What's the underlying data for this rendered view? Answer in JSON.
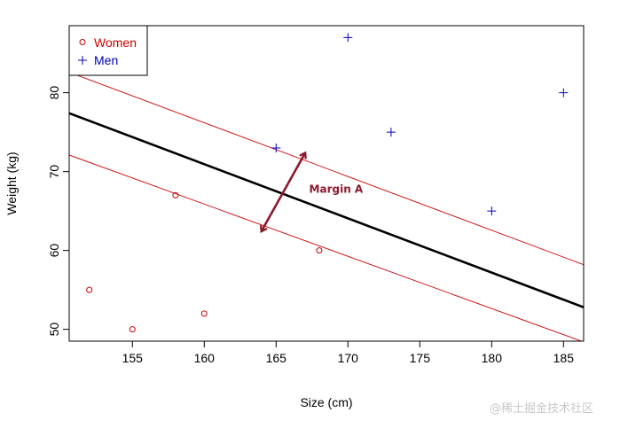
{
  "chart_data": {
    "type": "scatter",
    "xlabel": "Size (cm)",
    "ylabel": "Weight (kg)",
    "xlim": [
      150.6,
      186.4
    ],
    "ylim": [
      48.5,
      88.5
    ],
    "x_ticks": [
      155,
      160,
      165,
      170,
      175,
      180,
      185
    ],
    "y_ticks": [
      50,
      60,
      70,
      80
    ],
    "grid": false,
    "legend_position": "top-left",
    "series": [
      {
        "name": "Women",
        "marker": "circle",
        "color": "#cc0000",
        "points": [
          [
            152,
            55
          ],
          [
            155,
            50
          ],
          [
            158,
            67
          ],
          [
            160,
            52
          ],
          [
            168,
            60
          ]
        ]
      },
      {
        "name": "Men",
        "marker": "plus",
        "color": "#0000bb",
        "points": [
          [
            165,
            73
          ],
          [
            170,
            87
          ],
          [
            173,
            75
          ],
          [
            180,
            65
          ],
          [
            185,
            80
          ]
        ]
      }
    ],
    "lines": [
      {
        "role": "separator",
        "color": "#000000",
        "points": [
          [
            150.6,
            77.4
          ],
          [
            186.4,
            52.8
          ]
        ]
      },
      {
        "role": "margin-upper",
        "color": "#cc0000",
        "points": [
          [
            150.6,
            82.6
          ],
          [
            186.4,
            58.2
          ]
        ]
      },
      {
        "role": "margin-lower",
        "color": "#cc0000",
        "points": [
          [
            150.6,
            72.1
          ],
          [
            186.4,
            48.4
          ]
        ]
      }
    ],
    "annotations": [
      {
        "text": "Margin A",
        "color": "#8b1a2e",
        "arrow_from": [
          164.0,
          62.5
        ],
        "arrow_to": [
          167.0,
          72.3
        ],
        "label_at": [
          167.3,
          67.3
        ]
      }
    ]
  },
  "watermark": "@稀土掘金技术社区"
}
